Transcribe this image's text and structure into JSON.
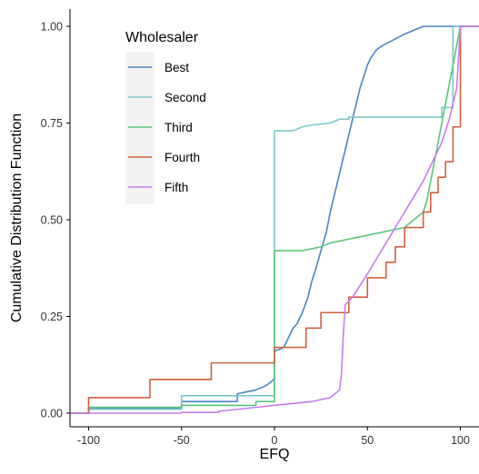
{
  "chart_data": {
    "type": "line",
    "subtype": "step-ecdf",
    "title": "",
    "xlabel": "EFQ",
    "ylabel": "Cumulative Distribution Function",
    "xlim": [
      -110,
      110
    ],
    "ylim": [
      0,
      1
    ],
    "x_ticks": [
      {
        "value": -100,
        "label": "-100"
      },
      {
        "value": -50,
        "label": "-50"
      },
      {
        "value": 0,
        "label": "0"
      },
      {
        "value": 50,
        "label": "50"
      },
      {
        "value": 100,
        "label": "100"
      }
    ],
    "y_ticks": [
      {
        "value": 0,
        "label": "0.00"
      },
      {
        "value": 0.25,
        "label": "0.25"
      },
      {
        "value": 0.5,
        "label": "0.50"
      },
      {
        "value": 0.75,
        "label": "0.75"
      },
      {
        "value": 1,
        "label": "1.00"
      }
    ],
    "grid": false,
    "legend": {
      "title": "Wholesaler",
      "position": "top-left-inside"
    },
    "series": [
      {
        "name": "Best",
        "color": "#4A86C5",
        "points": [
          [
            -110,
            0
          ],
          [
            -100,
            0
          ],
          [
            -100,
            0.012
          ],
          [
            -50,
            0.012
          ],
          [
            -50,
            0.03
          ],
          [
            -20,
            0.03
          ],
          [
            -20,
            0.05
          ],
          [
            -10,
            0.06
          ],
          [
            -5,
            0.07
          ],
          [
            -2,
            0.08
          ],
          [
            0,
            0.09
          ],
          [
            0,
            0.16
          ],
          [
            5,
            0.17
          ],
          [
            8,
            0.2
          ],
          [
            10,
            0.22
          ],
          [
            12,
            0.23
          ],
          [
            15,
            0.26
          ],
          [
            18,
            0.3
          ],
          [
            20,
            0.34
          ],
          [
            22,
            0.37
          ],
          [
            25,
            0.42
          ],
          [
            28,
            0.47
          ],
          [
            30,
            0.52
          ],
          [
            32,
            0.56
          ],
          [
            34,
            0.6
          ],
          [
            36,
            0.64
          ],
          [
            38,
            0.68
          ],
          [
            40,
            0.72
          ],
          [
            42,
            0.76
          ],
          [
            44,
            0.8
          ],
          [
            46,
            0.84
          ],
          [
            48,
            0.87
          ],
          [
            50,
            0.9
          ],
          [
            52,
            0.92
          ],
          [
            55,
            0.94
          ],
          [
            58,
            0.95
          ],
          [
            62,
            0.96
          ],
          [
            66,
            0.97
          ],
          [
            70,
            0.98
          ],
          [
            75,
            0.99
          ],
          [
            80,
            1.0
          ],
          [
            110,
            1.0
          ]
        ]
      },
      {
        "name": "Second",
        "color": "#7CC7CB",
        "points": [
          [
            -110,
            0
          ],
          [
            -100,
            0
          ],
          [
            -100,
            0.01
          ],
          [
            -50,
            0.01
          ],
          [
            -50,
            0.045
          ],
          [
            0,
            0.045
          ],
          [
            0,
            0.73
          ],
          [
            10,
            0.73
          ],
          [
            15,
            0.74
          ],
          [
            20,
            0.745
          ],
          [
            30,
            0.75
          ],
          [
            35,
            0.76
          ],
          [
            40,
            0.76
          ],
          [
            40,
            0.765
          ],
          [
            90,
            0.765
          ],
          [
            90,
            0.79
          ],
          [
            96,
            0.79
          ],
          [
            96,
            1.0
          ],
          [
            110,
            1.0
          ]
        ]
      },
      {
        "name": "Third",
        "color": "#5BC77B",
        "points": [
          [
            -110,
            0
          ],
          [
            -100,
            0
          ],
          [
            -100,
            0.015
          ],
          [
            -50,
            0.015
          ],
          [
            -50,
            0.02
          ],
          [
            -10,
            0.02
          ],
          [
            -10,
            0.03
          ],
          [
            0,
            0.03
          ],
          [
            0,
            0.42
          ],
          [
            15,
            0.42
          ],
          [
            20,
            0.425
          ],
          [
            25,
            0.43
          ],
          [
            30,
            0.44
          ],
          [
            40,
            0.45
          ],
          [
            50,
            0.46
          ],
          [
            60,
            0.47
          ],
          [
            70,
            0.48
          ],
          [
            75,
            0.5
          ],
          [
            80,
            0.52
          ],
          [
            82,
            0.55
          ],
          [
            84,
            0.6
          ],
          [
            86,
            0.65
          ],
          [
            88,
            0.7
          ],
          [
            90,
            0.75
          ],
          [
            92,
            0.8
          ],
          [
            94,
            0.85
          ],
          [
            96,
            0.9
          ],
          [
            98,
            0.95
          ],
          [
            100,
            1.0
          ],
          [
            110,
            1.0
          ]
        ]
      },
      {
        "name": "Fourth",
        "color": "#D1603D",
        "points": [
          [
            -110,
            0
          ],
          [
            -100,
            0
          ],
          [
            -100,
            0.04
          ],
          [
            -67,
            0.04
          ],
          [
            -67,
            0.087
          ],
          [
            -34,
            0.087
          ],
          [
            -34,
            0.13
          ],
          [
            0,
            0.13
          ],
          [
            0,
            0.17
          ],
          [
            17,
            0.17
          ],
          [
            17,
            0.22
          ],
          [
            25,
            0.22
          ],
          [
            25,
            0.26
          ],
          [
            40,
            0.26
          ],
          [
            40,
            0.3
          ],
          [
            50,
            0.3
          ],
          [
            50,
            0.35
          ],
          [
            60,
            0.35
          ],
          [
            60,
            0.39
          ],
          [
            65,
            0.39
          ],
          [
            65,
            0.43
          ],
          [
            70,
            0.43
          ],
          [
            70,
            0.48
          ],
          [
            80,
            0.48
          ],
          [
            80,
            0.52
          ],
          [
            84,
            0.52
          ],
          [
            84,
            0.57
          ],
          [
            88,
            0.57
          ],
          [
            88,
            0.61
          ],
          [
            92,
            0.61
          ],
          [
            92,
            0.65
          ],
          [
            96,
            0.65
          ],
          [
            96,
            0.74
          ],
          [
            100,
            0.74
          ],
          [
            100,
            1.0
          ],
          [
            110,
            1.0
          ]
        ]
      },
      {
        "name": "Fifth",
        "color": "#C77CF0",
        "points": [
          [
            -110,
            0
          ],
          [
            -100,
            0
          ],
          [
            -100,
            0.0
          ],
          [
            -50,
            0.0
          ],
          [
            -50,
            0.002
          ],
          [
            -30,
            0.002
          ],
          [
            -30,
            0.005
          ],
          [
            -20,
            0.01
          ],
          [
            -10,
            0.015
          ],
          [
            0,
            0.02
          ],
          [
            10,
            0.025
          ],
          [
            20,
            0.03
          ],
          [
            30,
            0.04
          ],
          [
            35,
            0.06
          ],
          [
            36,
            0.1
          ],
          [
            37,
            0.2
          ],
          [
            38,
            0.28
          ],
          [
            42,
            0.3
          ],
          [
            46,
            0.33
          ],
          [
            50,
            0.36
          ],
          [
            55,
            0.4
          ],
          [
            60,
            0.44
          ],
          [
            65,
            0.48
          ],
          [
            70,
            0.52
          ],
          [
            75,
            0.56
          ],
          [
            80,
            0.6
          ],
          [
            85,
            0.65
          ],
          [
            90,
            0.7
          ],
          [
            94,
            0.76
          ],
          [
            98,
            0.84
          ],
          [
            100,
            1.0
          ],
          [
            110,
            1.0
          ]
        ]
      }
    ]
  }
}
